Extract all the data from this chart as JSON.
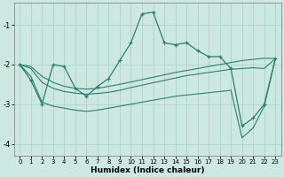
{
  "xlabel": "Humidex (Indice chaleur)",
  "x": [
    0,
    1,
    2,
    3,
    4,
    5,
    6,
    7,
    8,
    9,
    10,
    11,
    12,
    13,
    14,
    15,
    16,
    17,
    18,
    19,
    20,
    21,
    22,
    23
  ],
  "y_main": [
    -2.0,
    -2.4,
    -3.0,
    -2.0,
    -2.05,
    -2.6,
    -2.8,
    -2.55,
    -2.35,
    -1.9,
    -1.45,
    -0.72,
    -0.68,
    -1.45,
    -1.5,
    -1.45,
    -1.65,
    -1.8,
    -1.8,
    -2.1,
    -3.55,
    -3.35,
    -3.0,
    -1.85
  ],
  "y_upper": [
    -2.0,
    -2.05,
    -2.3,
    -2.45,
    -2.55,
    -2.6,
    -2.62,
    -2.6,
    -2.55,
    -2.5,
    -2.44,
    -2.38,
    -2.32,
    -2.26,
    -2.2,
    -2.15,
    -2.1,
    -2.05,
    -2.0,
    -1.95,
    -1.9,
    -1.87,
    -1.84,
    -1.85
  ],
  "y_mid": [
    -2.0,
    -2.1,
    -2.45,
    -2.6,
    -2.68,
    -2.72,
    -2.75,
    -2.73,
    -2.7,
    -2.65,
    -2.58,
    -2.52,
    -2.46,
    -2.4,
    -2.34,
    -2.28,
    -2.24,
    -2.2,
    -2.16,
    -2.12,
    -2.1,
    -2.08,
    -2.1,
    -1.85
  ],
  "y_lower": [
    -2.0,
    -2.3,
    -2.95,
    -3.05,
    -3.1,
    -3.15,
    -3.18,
    -3.15,
    -3.1,
    -3.05,
    -3.0,
    -2.95,
    -2.9,
    -2.85,
    -2.8,
    -2.77,
    -2.74,
    -2.71,
    -2.68,
    -2.65,
    -3.85,
    -3.6,
    -3.05,
    -1.85
  ],
  "color": "#2e7d6e",
  "bg_color": "#cce8e0",
  "grid_color": "#b0d8cf",
  "ylim": [
    -4.3,
    -0.45
  ],
  "xlim": [
    -0.5,
    23.5
  ],
  "yticks": [
    -4,
    -3,
    -2,
    -1
  ],
  "xticks": [
    0,
    1,
    2,
    3,
    4,
    5,
    6,
    7,
    8,
    9,
    10,
    11,
    12,
    13,
    14,
    15,
    16,
    17,
    18,
    19,
    20,
    21,
    22,
    23
  ]
}
